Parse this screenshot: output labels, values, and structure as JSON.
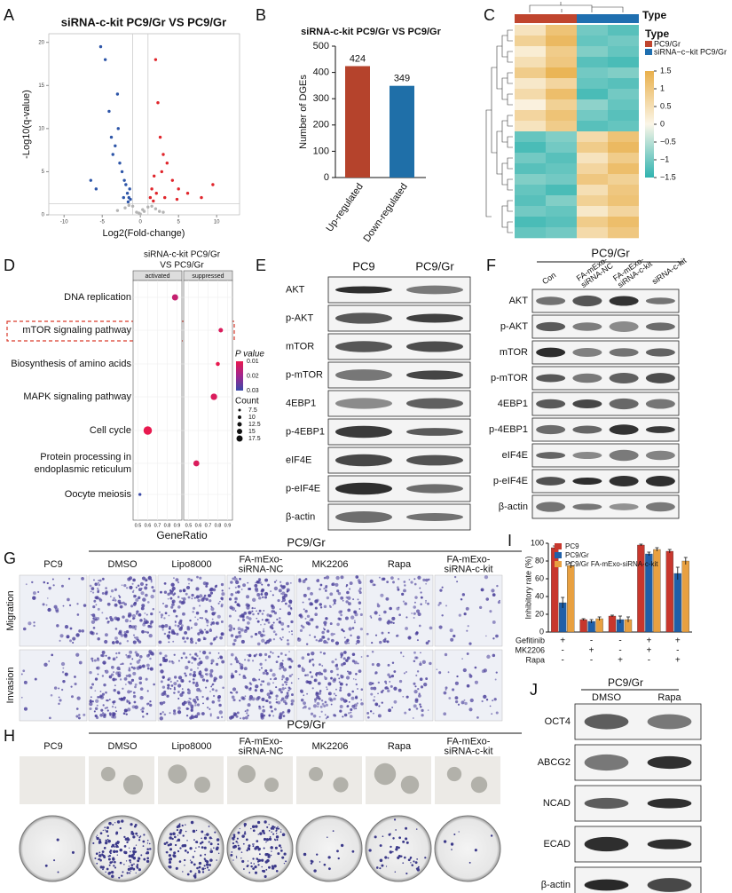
{
  "panel_letters": [
    "A",
    "B",
    "C",
    "D",
    "E",
    "F",
    "G",
    "H",
    "I",
    "J"
  ],
  "chart_data": [
    {
      "type": "scatter",
      "title": "siRNA-c-kit PC9/Gr VS PC9/Gr",
      "xlabel": "Log2(Fold-change)",
      "ylabel": "-Log10(q-value)",
      "xlim": [
        -12,
        13
      ],
      "ylim": [
        0,
        21
      ],
      "xticks": [
        -10,
        -5,
        0,
        5,
        10
      ],
      "yticks": [
        0,
        5,
        10,
        15,
        20
      ],
      "x_thresholds": [
        -1,
        1
      ],
      "y_threshold": 1.3,
      "series": [
        {
          "color": "#2d55a8",
          "x": [
            -5.8,
            -5.2,
            -4.6,
            -4.1,
            -3.8,
            -3.3,
            -3.0,
            -2.7,
            -2.4,
            -2.1,
            -1.9,
            -1.7,
            -1.5,
            -1.4,
            -1.3,
            -2.9,
            -3.6,
            -2.2,
            -1.6,
            -6.5
          ],
          "values": [
            3,
            19.5,
            18,
            12,
            9,
            8,
            14,
            6,
            5,
            4,
            3.5,
            2.5,
            2,
            3,
            1.8,
            10,
            7,
            2,
            1.5,
            4
          ]
        },
        {
          "color": "#e0252b",
          "x": [
            1.3,
            1.5,
            1.8,
            2.0,
            2.3,
            2.6,
            3.0,
            3.5,
            4.2,
            5.0,
            6.2,
            8.0,
            9.5,
            2.1,
            1.7,
            2.8,
            3.2,
            4.8
          ],
          "values": [
            2,
            3,
            4.5,
            18,
            13,
            9,
            7,
            6,
            4,
            3,
            2.5,
            2,
            3.5,
            2.5,
            1.6,
            5,
            2,
            1.8
          ]
        },
        {
          "color": "#b4b4b4",
          "x": [
            -3,
            -2,
            -1,
            -0.5,
            0,
            0.5,
            1,
            2,
            3,
            -1.5,
            0.3,
            -0.2,
            1.5,
            2.5
          ],
          "values": [
            0.5,
            0.8,
            1,
            0.3,
            0.1,
            0.4,
            0.9,
            0.7,
            0.3,
            1.1,
            0.6,
            0.2,
            1.0,
            0.4
          ]
        }
      ]
    },
    {
      "type": "bar",
      "title": "siRNA-c-kit PC9/Gr VS PC9/Gr",
      "ylabel": "Number of DGEs",
      "categories": [
        "Up-regulated",
        "Down-regulated"
      ],
      "values": [
        424,
        349
      ],
      "colors": [
        "#b5432c",
        "#1f6fa8"
      ],
      "ylim": [
        0,
        500
      ],
      "yticks": [
        0,
        100,
        200,
        300,
        400,
        500
      ]
    },
    {
      "type": "heatmap",
      "annotation": "Type",
      "legend_title": "Type",
      "groups": [
        {
          "name": "PC9/Gr",
          "color": "#c0452e"
        },
        {
          "name": "siRNA−c−kit PC9/Gr",
          "color": "#1f6fb0"
        }
      ],
      "column_groups": [
        0,
        0,
        1,
        1
      ],
      "colorbar": {
        "lim": [
          -1.5,
          1.5
        ],
        "ticks": [
          1.5,
          1,
          0.5,
          0,
          {
            "value": -0.5,
            "label": "−0.5"
          },
          {
            "value": -1,
            "label": "−1"
          },
          {
            "value": -1.5,
            "label": "−1.5"
          }
        ]
      },
      "matrix": [
        [
          0.4,
          1.1,
          -1.0,
          -1.2
        ],
        [
          0.8,
          1.3,
          -1.1,
          -1.0
        ],
        [
          0.2,
          0.9,
          -0.9,
          -1.1
        ],
        [
          0.5,
          1.0,
          -1.2,
          -1.3
        ],
        [
          0.9,
          1.4,
          -1.0,
          -0.9
        ],
        [
          0.3,
          0.7,
          -1.1,
          -1.2
        ],
        [
          0.6,
          1.2,
          -1.3,
          -1.0
        ],
        [
          0.1,
          0.8,
          -0.8,
          -1.1
        ],
        [
          0.7,
          1.1,
          -1.0,
          -1.2
        ],
        [
          0.4,
          0.9,
          -1.2,
          -1.1
        ],
        [
          -1.1,
          -0.9,
          0.6,
          1.1
        ],
        [
          -1.3,
          -1.0,
          0.9,
          1.3
        ],
        [
          -1.0,
          -1.2,
          0.4,
          0.9
        ],
        [
          -1.2,
          -1.1,
          0.7,
          1.2
        ],
        [
          -0.9,
          -1.0,
          1.0,
          0.8
        ],
        [
          -1.1,
          -1.3,
          0.5,
          1.0
        ],
        [
          -1.2,
          -0.9,
          0.8,
          1.1
        ],
        [
          -1.0,
          -1.1,
          0.3,
          0.7
        ],
        [
          -1.3,
          -1.2,
          0.9,
          1.2
        ],
        [
          -1.1,
          -1.0,
          0.6,
          1.0
        ]
      ]
    },
    {
      "type": "dotplot",
      "title": [
        "siRNA-c-kit PC9/Gr",
        "VS PC9/Gr"
      ],
      "categories": [
        "DNA replication",
        "mTOR signaling pathway",
        "Biosynthesis of amino acids",
        "MAPK signaling pathway",
        "Cell cycle",
        [
          "Protein processing in",
          "endoplasmic reticulum"
        ],
        "Oocyte meiosis"
      ],
      "facets": [
        "activated",
        "suppressed"
      ],
      "xlim": [
        0.45,
        0.95
      ],
      "xticks": [
        0.5,
        0.6,
        0.7,
        0.8,
        0.9
      ],
      "xlabel": "GeneRatio",
      "series": [
        {
          "categories": [
            "DNA replication",
            "Cell cycle",
            "Oocyte meiosis"
          ],
          "x": [
            0.88,
            0.6,
            0.52
          ],
          "p_value": [
            0.015,
            0.01,
            0.03
          ],
          "count": [
            12.5,
            17,
            6
          ]
        },
        {
          "categories": [
            "mTOR signaling pathway",
            "Biosynthesis of amino acids",
            "MAPK signaling pathway",
            [
              "Protein processing in",
              "endoplasmic reticulum"
            ]
          ],
          "x": [
            0.83,
            0.8,
            0.76,
            0.58
          ],
          "p_value": [
            0.012,
            0.01,
            0.012,
            0.012
          ],
          "count": [
            9,
            8,
            13,
            12
          ]
        }
      ],
      "color_legend": {
        "title": "P value",
        "ticks": [
          0.01,
          0.02,
          0.03
        ]
      },
      "size_legend": {
        "title": "Count",
        "ticks": [
          7.5,
          10,
          12.5,
          15,
          17.5
        ]
      }
    },
    {
      "type": "bar",
      "ylabel": "Inhibitory rate (%)",
      "ylim": [
        0,
        100
      ],
      "yticks": [
        0,
        20,
        40,
        60,
        80,
        100
      ],
      "series": [
        {
          "name": "PC9",
          "color": "#c8372d",
          "values": [
            95,
            14,
            18,
            98,
            91
          ],
          "errors": [
            2,
            1,
            1,
            1,
            2
          ]
        },
        {
          "name": "PC9/Gr",
          "color": "#1f5fa8",
          "values": [
            33,
            12,
            14,
            88,
            66
          ],
          "errors": [
            6,
            2,
            4,
            2,
            7
          ]
        },
        {
          "name": "PC9/Gr FA-mExo-siRNA-c-kit",
          "color": "#e8a040",
          "values": [
            75,
            15,
            14,
            93,
            80
          ],
          "errors": [
            3,
            2,
            3,
            2,
            4
          ]
        }
      ],
      "treatments": [
        {
          "name": "Gefitinib",
          "signs": [
            "+",
            "-",
            "-",
            "+",
            "+"
          ]
        },
        {
          "name": "MK2206",
          "signs": [
            "-",
            "+",
            "-",
            "+",
            "-"
          ]
        },
        {
          "name": "Rapa",
          "signs": [
            "-",
            "-",
            "+",
            "-",
            "+"
          ]
        }
      ]
    }
  ],
  "blot_e": {
    "columns": [
      "PC9",
      "PC9/Gr"
    ],
    "rows": [
      "AKT",
      "p-AKT",
      "mTOR",
      "p-mTOR",
      "4EBP1",
      "p-4EBP1",
      "eIF4E",
      "p-eIF4E",
      "β-actin"
    ]
  },
  "blot_f": {
    "group": "PC9/Gr",
    "columns": [
      "Con",
      [
        "FA-mExo-",
        "siRNA-NC"
      ],
      [
        "FA-mExo-",
        "siRNA-c-kit"
      ],
      "siRNA-c-kit"
    ],
    "rows": [
      "AKT",
      "p-AKT",
      "mTOR",
      "p-mTOR",
      "4EBP1",
      "p-4EBP1",
      "eIF4E",
      "p-eIF4E",
      "β-actin"
    ]
  },
  "panel_g": {
    "group": "PC9/Gr",
    "columns": [
      "PC9",
      "DMSO",
      "Lipo8000",
      [
        "FA-mExo-",
        "siRNA-NC"
      ],
      "MK2206",
      "Rapa",
      [
        "FA-mExo-",
        "siRNA-c-kit"
      ]
    ],
    "rows": [
      "Migration",
      "Invasion"
    ]
  },
  "panel_h": {
    "group": "PC9/Gr",
    "columns": [
      "PC9",
      "DMSO",
      "Lipo8000",
      [
        "FA-mExo-",
        "siRNA-NC"
      ],
      "MK2206",
      "Rapa",
      [
        "FA-mExo-",
        "siRNA-c-kit"
      ]
    ]
  },
  "blot_j": {
    "group": "PC9/Gr",
    "columns": [
      "DMSO",
      "Rapa"
    ],
    "rows": [
      "OCT4",
      "ABCG2",
      "NCAD",
      "ECAD",
      "β-actin"
    ]
  }
}
